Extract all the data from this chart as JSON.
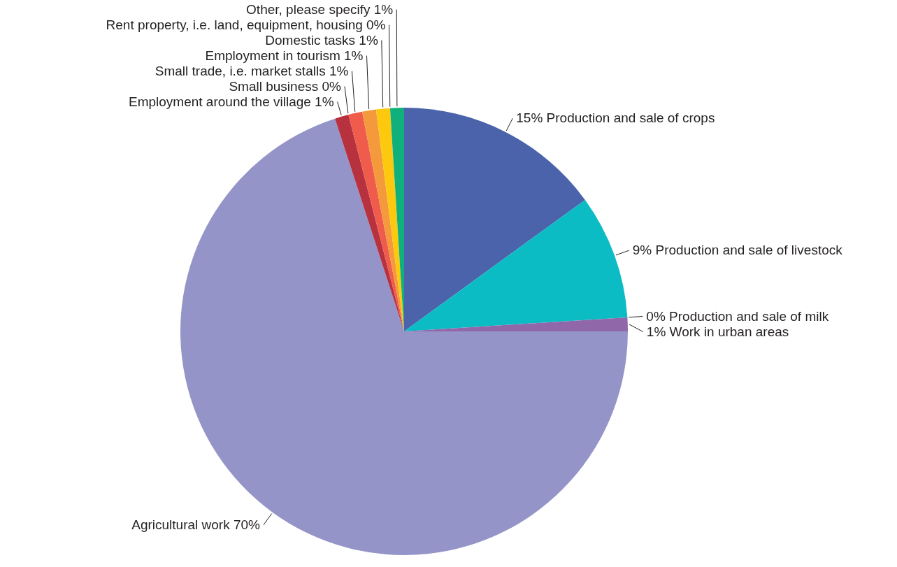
{
  "chart_data": {
    "type": "pie",
    "categories": [
      "Production and sale of crops",
      "Production and sale of livestock",
      "Production and sale of milk",
      "Work in urban areas",
      "Agricultural work",
      "Employment around the village",
      "Small business",
      "Small trade, i.e. market stalls",
      "Employment in tourism",
      "Domestic tasks",
      "Rent property, i.e. land, equipment, housing",
      "Other, please specify"
    ],
    "values": [
      15,
      9,
      0,
      1,
      70,
      1,
      0,
      1,
      1,
      1,
      0,
      1
    ],
    "value_labels": [
      "15%",
      "9%",
      "0%",
      "1%",
      "70%",
      "1%",
      "0%",
      "1%",
      "1%",
      "1%",
      "0%",
      "1%"
    ],
    "colors": [
      "#4a63ab",
      "#0bbcc4",
      "#3f8fc0",
      "#9068aa",
      "#9494c8",
      "#b8313f",
      "#d8434a",
      "#ef5c4b",
      "#f59a3c",
      "#fdc90f",
      "#8cc63f",
      "#10b07c"
    ]
  }
}
